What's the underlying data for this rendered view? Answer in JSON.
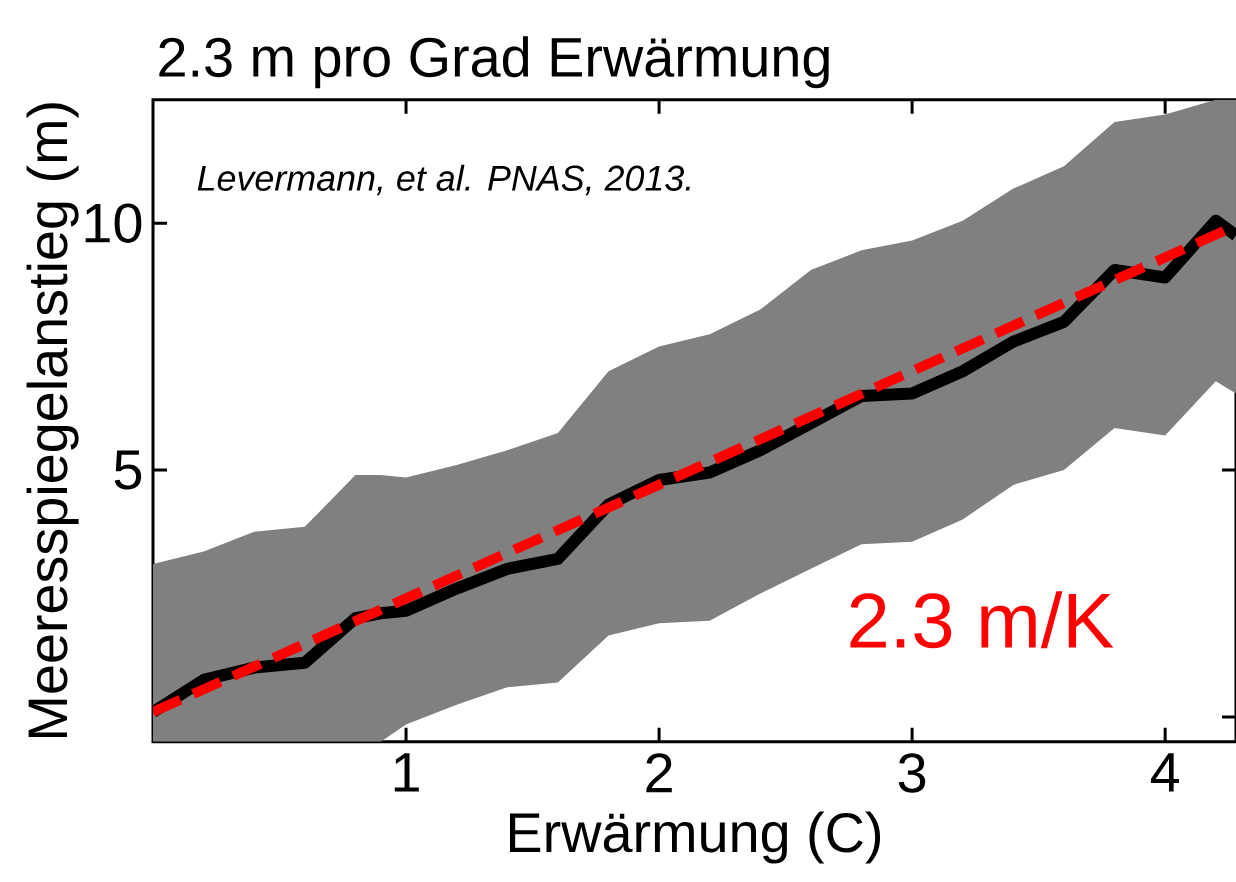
{
  "chart_data": {
    "type": "line",
    "title": "2.3 m pro Grad Erwärmung",
    "xlabel": "Erwärmung (C)",
    "ylabel": "Meeresspiegelanstieg (m)",
    "annotations": [
      "Levermann, et al. PNAS, 2013.",
      "2.3 m/K"
    ],
    "xlim": [
      0,
      4.28
    ],
    "ylim": [
      -0.5,
      12.5
    ],
    "xticks": [
      1,
      2,
      3,
      4
    ],
    "yticks": [
      {
        "value": 0,
        "label": null
      },
      5,
      10
    ],
    "series": [
      {
        "color": "#000000",
        "x": [
          0,
          0.2,
          0.4,
          0.6,
          0.8,
          0.9,
          1.0,
          1.2,
          1.4,
          1.6,
          1.8,
          2.0,
          2.2,
          2.4,
          2.6,
          2.8,
          3.0,
          3.2,
          3.4,
          3.6,
          3.8,
          4.0,
          4.2,
          4.28
        ],
        "values": [
          0.1,
          0.75,
          1.0,
          1.1,
          2.0,
          2.1,
          2.15,
          2.6,
          3.0,
          3.2,
          4.3,
          4.8,
          4.95,
          5.4,
          5.95,
          6.5,
          6.55,
          7.0,
          7.6,
          8.0,
          9.05,
          8.9,
          10.05,
          9.75
        ],
        "lower": [
          -0.5,
          -0.5,
          -0.5,
          -0.5,
          -0.5,
          -0.5,
          -0.15,
          0.25,
          0.6,
          0.7,
          1.65,
          1.9,
          1.95,
          2.5,
          3.0,
          3.5,
          3.55,
          4.0,
          4.7,
          5.0,
          5.85,
          5.7,
          6.8,
          6.55
        ],
        "upper": [
          3.1,
          3.35,
          3.75,
          3.85,
          4.9,
          4.9,
          4.85,
          5.1,
          5.4,
          5.75,
          7.0,
          7.5,
          7.75,
          8.25,
          9.05,
          9.45,
          9.65,
          10.05,
          10.7,
          11.15,
          12.05,
          12.2,
          12.5,
          12.5
        ]
      },
      {
        "color": "#ff0000",
        "line_style": "dashed",
        "x": [
          0,
          4.28
        ],
        "values": [
          0.1,
          9.95
        ]
      }
    ]
  }
}
